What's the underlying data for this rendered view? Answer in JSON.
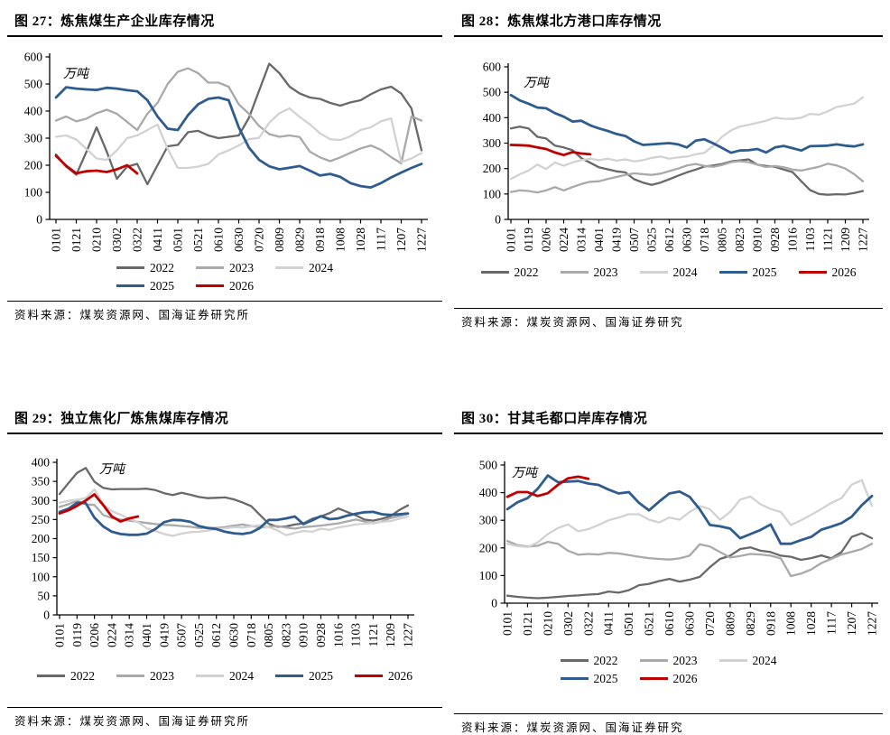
{
  "report": {
    "unit_label": "万吨",
    "legend_years": [
      "2022",
      "2023",
      "2024",
      "2025",
      "2026"
    ]
  },
  "colors": {
    "2022": "#696969",
    "2023": "#a9a9a9",
    "2024": "#d2d2d2",
    "2025": "#2e5c8f",
    "2026": "#c00000",
    "axis": "#000000"
  },
  "chart_data": [
    {
      "id": "fig27",
      "type": "line",
      "title": "图 27：炼焦煤生产企业库存情况",
      "unit": "万吨",
      "source": "资料来源：煤炭资源网、国海证券研究所",
      "ylim": [
        0,
        600
      ],
      "ystep": 100,
      "grid": false,
      "legend_position": "bottom",
      "points_per_tick": 2,
      "x_ticklabels": [
        "0101",
        "0121",
        "0210",
        "0302",
        "0322",
        "0411",
        "0501",
        "0521",
        "0610",
        "0630",
        "0720",
        "0809",
        "0829",
        "0918",
        "1008",
        "1028",
        "1117",
        "1207",
        "1227"
      ],
      "legend_rows": [
        [
          "2022",
          "2023",
          "2024"
        ],
        [
          "2025",
          "2026"
        ]
      ],
      "series": [
        {
          "name": "2022",
          "values": [
            240,
            195,
            165,
            250,
            340,
            250,
            150,
            195,
            205,
            130,
            200,
            270,
            275,
            322,
            327,
            310,
            300,
            305,
            310,
            375,
            475,
            575,
            540,
            490,
            465,
            450,
            445,
            430,
            420,
            432,
            440,
            462,
            480,
            490,
            465,
            410,
            255
          ]
        },
        {
          "name": "2023",
          "values": [
            365,
            380,
            362,
            372,
            392,
            405,
            390,
            360,
            330,
            390,
            430,
            500,
            545,
            558,
            540,
            505,
            505,
            490,
            425,
            390,
            345,
            315,
            305,
            310,
            304,
            250,
            229,
            215,
            229,
            246,
            262,
            273,
            257,
            230,
            207,
            380,
            365
          ]
        },
        {
          "name": "2024",
          "values": [
            305,
            310,
            295,
            260,
            225,
            220,
            255,
            300,
            310,
            330,
            350,
            260,
            190,
            190,
            195,
            205,
            240,
            255,
            273,
            296,
            301,
            357,
            392,
            410,
            378,
            351,
            318,
            296,
            293,
            307,
            330,
            340,
            362,
            373,
            212,
            225,
            245
          ]
        },
        {
          "name": "2025",
          "values": [
            450,
            488,
            483,
            480,
            478,
            486,
            483,
            477,
            473,
            440,
            380,
            335,
            330,
            385,
            425,
            445,
            450,
            440,
            340,
            265,
            220,
            196,
            185,
            191,
            197,
            180,
            162,
            168,
            157,
            134,
            123,
            118,
            134,
            155,
            173,
            190,
            205
          ]
        },
        {
          "name": "2026",
          "values": [
            235,
            198,
            170,
            178,
            180,
            175,
            185,
            200,
            170
          ]
        }
      ]
    },
    {
      "id": "fig28",
      "type": "line",
      "title": "图 28：炼焦煤北方港口库存情况",
      "unit": "万吨",
      "source": "资料来源：煤炭资源网、国海证券研究",
      "ylim": [
        0,
        600
      ],
      "ystep": 100,
      "grid": false,
      "legend_position": "bottom",
      "points_per_tick": 2,
      "x_ticklabels": [
        "0101",
        "0119",
        "0206",
        "0224",
        "0314",
        "0401",
        "0419",
        "0507",
        "0525",
        "0612",
        "0630",
        "0718",
        "0805",
        "0823",
        "0910",
        "0928",
        "1016",
        "1103",
        "1121",
        "1209",
        "1227"
      ],
      "legend_rows": [
        [
          "2022",
          "2023",
          "2024",
          "2025",
          "2026"
        ]
      ],
      "series": [
        {
          "name": "2022",
          "values": [
            358,
            365,
            358,
            325,
            318,
            290,
            283,
            272,
            241,
            223,
            205,
            197,
            189,
            185,
            158,
            145,
            136,
            145,
            158,
            172,
            185,
            196,
            208,
            212,
            218,
            228,
            232,
            236,
            215,
            210,
            207,
            196,
            186,
            150,
            115,
            100,
            97,
            99,
            98,
            104,
            112
          ]
        },
        {
          "name": "2023",
          "values": [
            108,
            114,
            112,
            106,
            114,
            127,
            114,
            127,
            139,
            148,
            150,
            159,
            167,
            175,
            181,
            178,
            175,
            180,
            190,
            200,
            212,
            218,
            210,
            207,
            214,
            225,
            229,
            225,
            215,
            206,
            210,
            205,
            196,
            192,
            200,
            207,
            219,
            212,
            200,
            178,
            150
          ]
        },
        {
          "name": "2024",
          "values": [
            159,
            177,
            192,
            216,
            198,
            224,
            211,
            224,
            233,
            239,
            233,
            239,
            231,
            236,
            228,
            233,
            242,
            247,
            239,
            244,
            247,
            256,
            262,
            290,
            325,
            350,
            365,
            372,
            380,
            388,
            400,
            396,
            395,
            400,
            415,
            412,
            425,
            442,
            448,
            455,
            480
          ]
        },
        {
          "name": "2025",
          "values": [
            489,
            468,
            455,
            440,
            437,
            418,
            404,
            385,
            388,
            370,
            358,
            348,
            336,
            328,
            307,
            293,
            295,
            298,
            300,
            295,
            283,
            310,
            315,
            299,
            281,
            262,
            271,
            272,
            277,
            263,
            283,
            289,
            280,
            271,
            288,
            289,
            290,
            295,
            290,
            287,
            295
          ]
        },
        {
          "name": "2026",
          "values": [
            293,
            292,
            290,
            283,
            277,
            263,
            253,
            265,
            259,
            256
          ]
        }
      ]
    },
    {
      "id": "fig29",
      "type": "line",
      "title": "图 29：独立焦化厂炼焦煤库存情况",
      "unit": "万吨",
      "source": "资料来源：煤炭资源网、国海证券研究所",
      "ylim": [
        0,
        400
      ],
      "ystep": 50,
      "grid": false,
      "legend_position": "bottom",
      "points_per_tick": 2,
      "x_ticklabels": [
        "0101",
        "0119",
        "0206",
        "0224",
        "0314",
        "0401",
        "0419",
        "0507",
        "0525",
        "0612",
        "0630",
        "0718",
        "0805",
        "0823",
        "0910",
        "0928",
        "1016",
        "1103",
        "1121",
        "1209",
        "1227"
      ],
      "legend_rows": [
        [
          "2022",
          "2023",
          "2024",
          "2025",
          "2026"
        ]
      ],
      "series": [
        {
          "name": "2022",
          "values": [
            317,
            345,
            372,
            385,
            349,
            333,
            329,
            330,
            330,
            330,
            331,
            327,
            319,
            314,
            320,
            315,
            309,
            306,
            307,
            308,
            303,
            295,
            285,
            262,
            239,
            231,
            232,
            237,
            240,
            252,
            258,
            267,
            279,
            270,
            261,
            250,
            247,
            252,
            259,
            275,
            287
          ]
        },
        {
          "name": "2023",
          "values": [
            283,
            290,
            300,
            290,
            288,
            262,
            254,
            250,
            247,
            244,
            241,
            238,
            236,
            235,
            233,
            231,
            228,
            228,
            228,
            230,
            234,
            237,
            233,
            230,
            231,
            233,
            229,
            226,
            230,
            232,
            234,
            237,
            240,
            245,
            250,
            245,
            240,
            245,
            254,
            259,
            265
          ]
        },
        {
          "name": "2024",
          "values": [
            294,
            299,
            302,
            306,
            329,
            290,
            272,
            263,
            252,
            243,
            227,
            220,
            212,
            207,
            213,
            217,
            218,
            221,
            225,
            227,
            230,
            229,
            232,
            235,
            230,
            222,
            209,
            215,
            220,
            218,
            226,
            223,
            229,
            233,
            237,
            239,
            241,
            244,
            246,
            252,
            258
          ]
        },
        {
          "name": "2025",
          "values": [
            270,
            278,
            294,
            293,
            255,
            232,
            218,
            212,
            210,
            210,
            213,
            225,
            243,
            249,
            248,
            244,
            233,
            228,
            225,
            218,
            214,
            212,
            216,
            228,
            249,
            249,
            253,
            258,
            238,
            248,
            259,
            251,
            253,
            260,
            265,
            269,
            270,
            264,
            262,
            264,
            266
          ]
        },
        {
          "name": "2026",
          "values": [
            266,
            274,
            286,
            300,
            316,
            288,
            258,
            245,
            253,
            258
          ]
        }
      ]
    },
    {
      "id": "fig30",
      "type": "line",
      "title": "图 30：甘其毛都口岸库存情况",
      "unit": "万吨",
      "source": "资料来源：煤炭资源网、国海证券研究",
      "ylim": [
        0,
        500
      ],
      "ystep": 100,
      "grid": false,
      "legend_position": "bottom",
      "points_per_tick": 2,
      "x_ticklabels": [
        "0101",
        "0121",
        "0210",
        "0302",
        "0322",
        "0411",
        "0501",
        "0521",
        "0610",
        "0630",
        "0720",
        "0809",
        "0829",
        "0918",
        "1008",
        "1028",
        "1117",
        "1207",
        "1227"
      ],
      "legend_rows": [
        [
          "2022",
          "2023",
          "2024"
        ],
        [
          "2025",
          "2026"
        ]
      ],
      "series": [
        {
          "name": "2022",
          "values": [
            27,
            23,
            20,
            18,
            20,
            23,
            26,
            28,
            31,
            33,
            42,
            38,
            47,
            65,
            70,
            80,
            88,
            78,
            85,
            95,
            130,
            160,
            172,
            196,
            202,
            190,
            185,
            172,
            168,
            157,
            163,
            173,
            162,
            185,
            240,
            253,
            235
          ]
        },
        {
          "name": "2023",
          "values": [
            225,
            210,
            205,
            208,
            222,
            215,
            190,
            175,
            178,
            176,
            182,
            180,
            174,
            168,
            163,
            160,
            158,
            162,
            172,
            213,
            205,
            185,
            165,
            171,
            178,
            176,
            172,
            162,
            98,
            107,
            122,
            145,
            160,
            176,
            186,
            196,
            215
          ]
        },
        {
          "name": "2024",
          "values": [
            215,
            207,
            203,
            220,
            250,
            272,
            285,
            260,
            268,
            283,
            300,
            310,
            322,
            322,
            302,
            292,
            310,
            302,
            330,
            352,
            340,
            302,
            330,
            375,
            386,
            358,
            341,
            330,
            283,
            300,
            320,
            341,
            363,
            380,
            429,
            445,
            352
          ]
        },
        {
          "name": "2025",
          "values": [
            340,
            365,
            380,
            414,
            462,
            438,
            440,
            442,
            433,
            428,
            411,
            397,
            402,
            363,
            336,
            368,
            397,
            404,
            385,
            340,
            283,
            278,
            270,
            235,
            250,
            265,
            285,
            215,
            215,
            228,
            240,
            266,
            277,
            290,
            313,
            355,
            388
          ]
        },
        {
          "name": "2026",
          "values": [
            385,
            402,
            402,
            388,
            398,
            428,
            452,
            458,
            450
          ]
        }
      ]
    }
  ]
}
